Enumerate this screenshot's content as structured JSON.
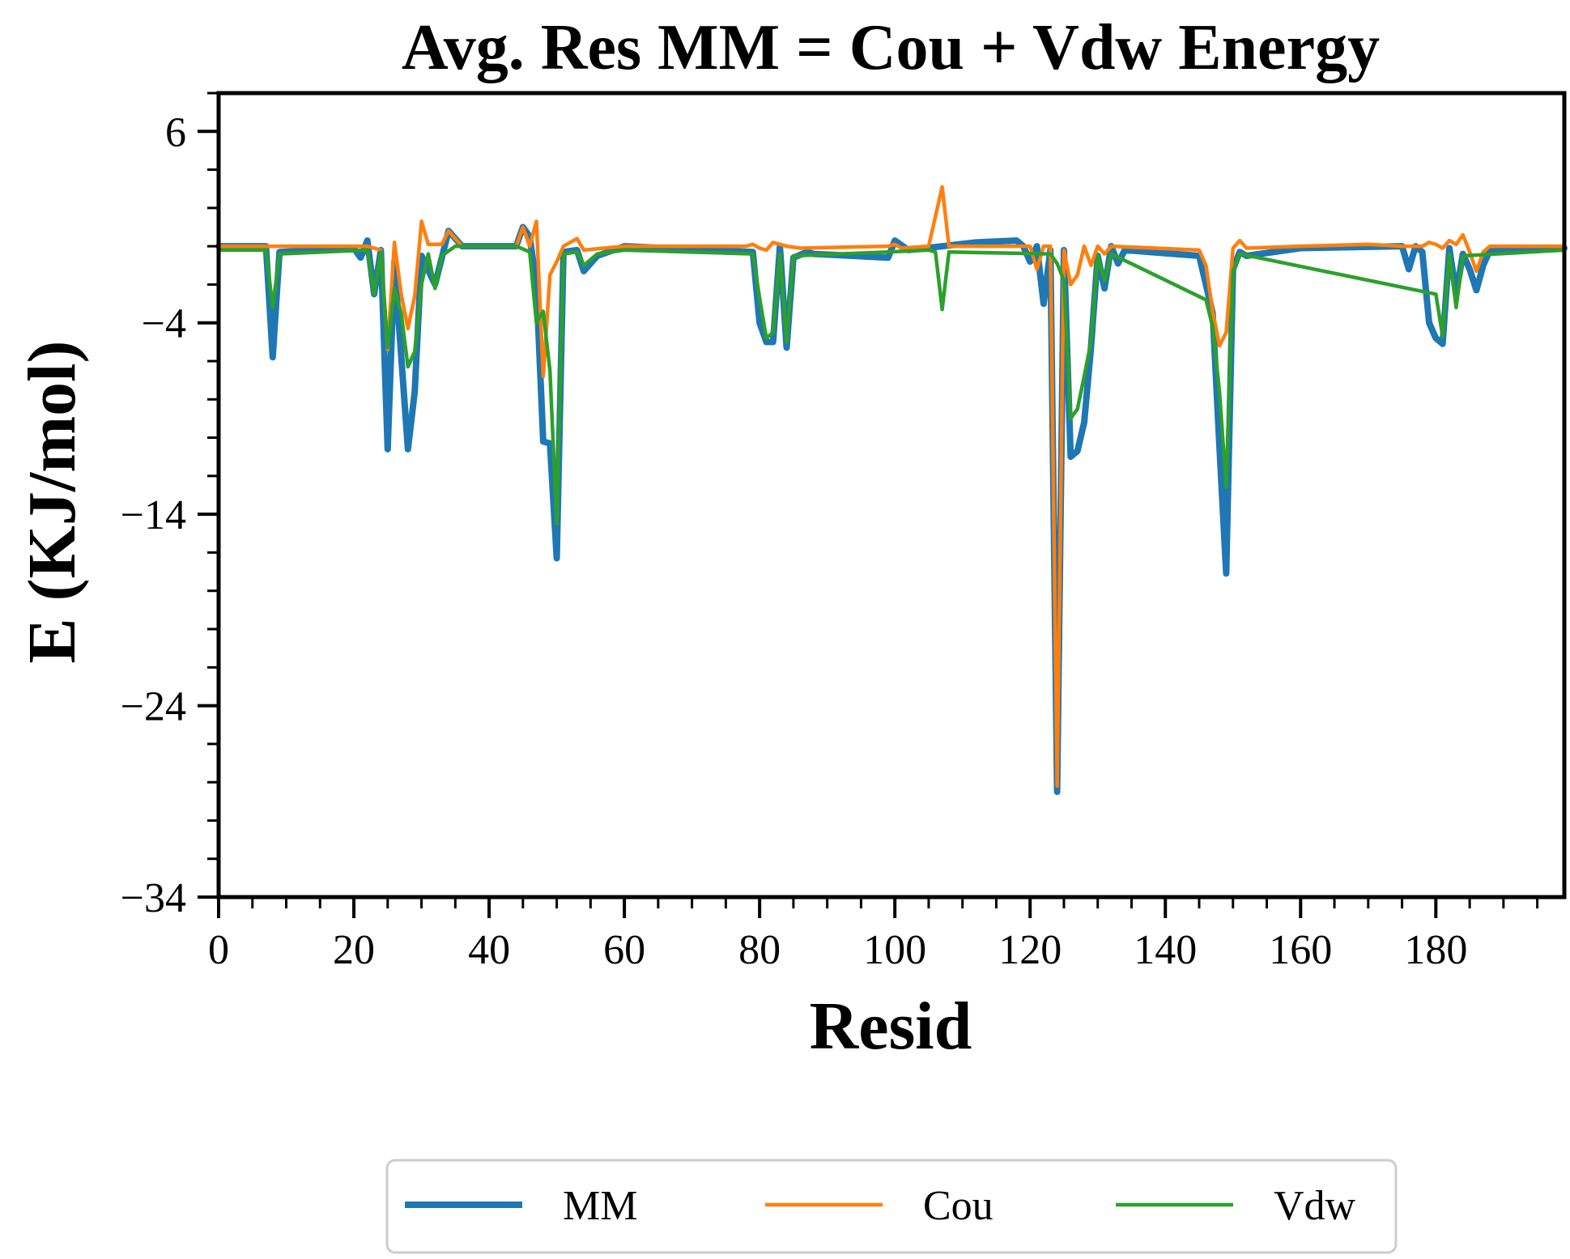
{
  "chart_data": {
    "type": "line",
    "title": "Avg. Res MM = Cou + Vdw Energy",
    "xlabel": "Resid",
    "ylabel": "E (KJ/mol)",
    "xlim": [
      0,
      199
    ],
    "ylim": [
      -34,
      8
    ],
    "xticks": [
      0,
      20,
      40,
      60,
      80,
      100,
      120,
      140,
      160,
      180
    ],
    "yticks": [
      6,
      -4,
      -14,
      -24,
      -34
    ],
    "tick_labels": {
      "x": [
        "0",
        "20",
        "40",
        "60",
        "80",
        "100",
        "120",
        "140",
        "160",
        "180"
      ],
      "y": [
        "6",
        "−4",
        "−14",
        "−24",
        "−34"
      ]
    },
    "minor_x_step": 5,
    "minor_y_step": 2,
    "legend": {
      "position": "bottom-center"
    },
    "grid": false,
    "series": [
      {
        "name": "MM",
        "color": "#1f77b4",
        "width": "thick",
        "points": [
          [
            0,
            0
          ],
          [
            7,
            0
          ],
          [
            8,
            -5.8
          ],
          [
            9,
            -0.3
          ],
          [
            20,
            -0.1
          ],
          [
            21,
            -0.6
          ],
          [
            22,
            0.3
          ],
          [
            23,
            -2.5
          ],
          [
            24,
            -0.2
          ],
          [
            25,
            -10.6
          ],
          [
            26,
            -0.8
          ],
          [
            28,
            -10.6
          ],
          [
            29,
            -7.6
          ],
          [
            30,
            -0.5
          ],
          [
            32,
            -2
          ],
          [
            34,
            0.8
          ],
          [
            36,
            0
          ],
          [
            44,
            0
          ],
          [
            45,
            1
          ],
          [
            46,
            0.5
          ],
          [
            47,
            -2
          ],
          [
            48,
            -10.2
          ],
          [
            49,
            -10.3
          ],
          [
            50,
            -16.3
          ],
          [
            51,
            -0.3
          ],
          [
            53,
            -0.2
          ],
          [
            54,
            -1.3
          ],
          [
            56,
            -0.5
          ],
          [
            60,
            0
          ],
          [
            79,
            -0.3
          ],
          [
            80,
            -4
          ],
          [
            81,
            -5
          ],
          [
            82,
            -5
          ],
          [
            83,
            0
          ],
          [
            84,
            -5.3
          ],
          [
            85,
            -0.6
          ],
          [
            87,
            -0.3
          ],
          [
            88,
            -0.4
          ],
          [
            99,
            -0.6
          ],
          [
            100,
            0.3
          ],
          [
            102,
            -0.2
          ],
          [
            112,
            0.2
          ],
          [
            118,
            0.3
          ],
          [
            119,
            0
          ],
          [
            120,
            -0.8
          ],
          [
            121,
            0
          ],
          [
            122,
            -3
          ],
          [
            123,
            -0.2
          ],
          [
            124,
            -28.5
          ],
          [
            125,
            -0.2
          ],
          [
            126,
            -11
          ],
          [
            127,
            -10.7
          ],
          [
            128,
            -9.2
          ],
          [
            129,
            -5.3
          ],
          [
            130,
            -0.5
          ],
          [
            131,
            -2.2
          ],
          [
            132,
            0
          ],
          [
            133,
            -0.9
          ],
          [
            134,
            -0.2
          ],
          [
            145,
            -0.5
          ],
          [
            147,
            -3.5
          ],
          [
            148,
            -10.5
          ],
          [
            149,
            -17.1
          ],
          [
            150,
            -1.2
          ],
          [
            151,
            -0.3
          ],
          [
            152,
            -0.5
          ],
          [
            160,
            -0.1
          ],
          [
            175,
            0
          ],
          [
            176,
            -1.2
          ],
          [
            177,
            0
          ],
          [
            178,
            -0.3
          ],
          [
            179,
            -4
          ],
          [
            180,
            -4.8
          ],
          [
            181,
            -5.1
          ],
          [
            182,
            -0.1
          ],
          [
            183,
            -2.5
          ],
          [
            184,
            -0.4
          ],
          [
            185,
            -1.2
          ],
          [
            186,
            -2.3
          ],
          [
            187,
            -1
          ],
          [
            188,
            -0.2
          ],
          [
            199,
            -0.1
          ]
        ]
      },
      {
        "name": "Cou",
        "color": "#ff7f0e",
        "width": "thin",
        "points": [
          [
            0,
            0
          ],
          [
            20,
            0
          ],
          [
            22,
            0
          ],
          [
            24,
            -0.2
          ],
          [
            25,
            -5.4
          ],
          [
            26,
            0.2
          ],
          [
            27,
            -2.5
          ],
          [
            28,
            -4.3
          ],
          [
            29,
            -2.6
          ],
          [
            30,
            1.3
          ],
          [
            31,
            0.1
          ],
          [
            33,
            0.1
          ],
          [
            34,
            0.8
          ],
          [
            36,
            0
          ],
          [
            44,
            0
          ],
          [
            45,
            1
          ],
          [
            46,
            0
          ],
          [
            47,
            1.3
          ],
          [
            48,
            -6.8
          ],
          [
            49,
            -1.5
          ],
          [
            50,
            -0.8
          ],
          [
            51,
            0
          ],
          [
            53,
            0.4
          ],
          [
            54,
            -0.2
          ],
          [
            60,
            0
          ],
          [
            78,
            0
          ],
          [
            79,
            0.1
          ],
          [
            80,
            -0.1
          ],
          [
            81,
            -0.2
          ],
          [
            82,
            0.2
          ],
          [
            84,
            0
          ],
          [
            86,
            -0.1
          ],
          [
            99,
            0
          ],
          [
            100,
            0.1
          ],
          [
            101,
            -0.1
          ],
          [
            105,
            0
          ],
          [
            107,
            3.1
          ],
          [
            108,
            0
          ],
          [
            110,
            0
          ],
          [
            120,
            0
          ],
          [
            121,
            -1.2
          ],
          [
            122,
            0
          ],
          [
            123,
            0
          ],
          [
            124,
            -28.2
          ],
          [
            125,
            -0.2
          ],
          [
            126,
            -2
          ],
          [
            127,
            -1.5
          ],
          [
            128,
            0
          ],
          [
            129,
            -1
          ],
          [
            130,
            0
          ],
          [
            131,
            -0.4
          ],
          [
            132,
            0
          ],
          [
            145,
            -0.2
          ],
          [
            146,
            -1
          ],
          [
            147,
            -3.4
          ],
          [
            148,
            -5.2
          ],
          [
            149,
            -4.5
          ],
          [
            150,
            -0.1
          ],
          [
            151,
            0.3
          ],
          [
            152,
            -0.1
          ],
          [
            160,
            0
          ],
          [
            170,
            0.1
          ],
          [
            175,
            0
          ],
          [
            178,
            0
          ],
          [
            179,
            0.2
          ],
          [
            180,
            0.1
          ],
          [
            181,
            -0.1
          ],
          [
            182,
            0.3
          ],
          [
            183,
            0.1
          ],
          [
            184,
            0.6
          ],
          [
            185,
            -0.3
          ],
          [
            186,
            -1.3
          ],
          [
            187,
            -0.3
          ],
          [
            188,
            0
          ],
          [
            199,
            0
          ]
        ]
      },
      {
        "name": "Vdw",
        "color": "#2ca02c",
        "width": "thin",
        "points": [
          [
            0,
            -0.2
          ],
          [
            7,
            -0.2
          ],
          [
            8,
            -3.2
          ],
          [
            9,
            -0.4
          ],
          [
            22,
            -0.2
          ],
          [
            23,
            -2.5
          ],
          [
            24,
            -0.3
          ],
          [
            25,
            -5.3
          ],
          [
            26,
            -2.2
          ],
          [
            27,
            -3.5
          ],
          [
            28,
            -6.3
          ],
          [
            29,
            -5.5
          ],
          [
            30,
            -2
          ],
          [
            31,
            -0.4
          ],
          [
            32,
            -2.2
          ],
          [
            33,
            -0.5
          ],
          [
            35,
            0
          ],
          [
            44,
            0
          ],
          [
            46,
            -0.3
          ],
          [
            47,
            -4
          ],
          [
            48,
            -3.4
          ],
          [
            49,
            -6.5
          ],
          [
            50,
            -14.5
          ],
          [
            51,
            -0.4
          ],
          [
            53,
            -0.3
          ],
          [
            54,
            -1
          ],
          [
            56,
            -0.4
          ],
          [
            60,
            -0.2
          ],
          [
            79,
            -0.4
          ],
          [
            80,
            -2.7
          ],
          [
            81,
            -4.8
          ],
          [
            82,
            -4.5
          ],
          [
            83,
            -0.4
          ],
          [
            84,
            -5
          ],
          [
            85,
            -0.5
          ],
          [
            99,
            -0.3
          ],
          [
            105,
            -0.2
          ],
          [
            106,
            -0.3
          ],
          [
            107,
            -3.3
          ],
          [
            108,
            -0.3
          ],
          [
            123,
            -0.4
          ],
          [
            124,
            -0.9
          ],
          [
            125,
            -1.8
          ],
          [
            126,
            -9
          ],
          [
            127,
            -8.5
          ],
          [
            128,
            -6.8
          ],
          [
            129,
            -5
          ],
          [
            130,
            -0.5
          ],
          [
            131,
            -1.8
          ],
          [
            132,
            -0.4
          ],
          [
            146,
            -2.8
          ],
          [
            147,
            -4.2
          ],
          [
            148,
            -7.6
          ],
          [
            149,
            -12.6
          ],
          [
            150,
            -1.3
          ],
          [
            151,
            -0.4
          ],
          [
            180,
            -2.5
          ],
          [
            181,
            -4.7
          ],
          [
            182,
            -0.4
          ],
          [
            183,
            -3.2
          ],
          [
            184,
            -0.5
          ],
          [
            199,
            -0.2
          ]
        ]
      }
    ]
  }
}
